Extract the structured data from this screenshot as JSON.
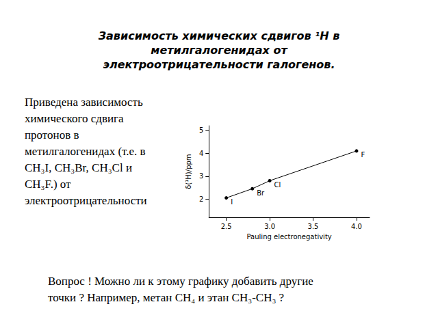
{
  "chart_data": {
    "type": "line",
    "title": "Зависимость химических сдвигов ¹H в\nметилгалогенидах от\nэлектроотрицательности  галогенов.",
    "annotations": [
      "Приведена зависимость\nхимического сдвига\nпротонов в\nметилгалогенидах (т.е. в\nCH₃I, CH₃Br, CH₃Cl и\nCH₃F.) от\nэлектроотрицательности",
      "Вопрос ! Можно ли к этому графику добавить другие\nточки ? Например, метан CH₄ и этан CH₃-CH₃ ?"
    ],
    "x_label": "Pauling electronegativity",
    "y_label": "δ(¹H)/ppm",
    "x": [
      2.5,
      2.8,
      3.0,
      4.0
    ],
    "values": [
      2.05,
      2.45,
      2.8,
      4.1
    ],
    "labels": [
      "I",
      "Br",
      "Cl",
      "F"
    ],
    "color": "#000000",
    "marker": "circle",
    "xlim": [
      2.3,
      4.15
    ],
    "xticks": [
      2.5,
      {
        "value": 3.0,
        "label": "3.0"
      },
      3.5,
      {
        "value": 4.0,
        "label": "4.0"
      }
    ],
    "ylim": [
      1.2,
      5.2
    ],
    "yticks": [
      2,
      3,
      4,
      5
    ],
    "grid": false
  }
}
